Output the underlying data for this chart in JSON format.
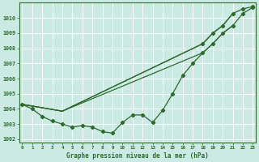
{
  "background_color": "#cceae4",
  "grid_color": "#ffffff",
  "line_color": "#2d6a2d",
  "title": "Graphe pression niveau de la mer (hPa)",
  "yticks": [
    1002,
    1003,
    1004,
    1005,
    1006,
    1007,
    1008,
    1009,
    1010
  ],
  "ylim_low": 1001.8,
  "ylim_high": 1011.0,
  "xlim_low": -0.3,
  "xlim_high": 23.3,
  "curve1_x": [
    0,
    1,
    2,
    3,
    4,
    5,
    6,
    7,
    8,
    9,
    10,
    11,
    12,
    13,
    14,
    15,
    16,
    17,
    18,
    19,
    20,
    21,
    22,
    23
  ],
  "curve1_y": [
    1004.3,
    1004.0,
    1003.5,
    1003.2,
    1003.0,
    1002.8,
    1002.9,
    1002.8,
    1002.5,
    1002.4,
    1003.1,
    1003.6,
    1003.6,
    1003.1,
    1003.9,
    1005.0,
    1006.2,
    1007.0,
    1007.7,
    1008.3,
    1009.0,
    1009.5,
    1010.3,
    1010.7
  ],
  "curve2_x": [
    0,
    4,
    18,
    19,
    20,
    21,
    22,
    23
  ],
  "curve2_y": [
    1004.3,
    1003.85,
    1008.3,
    1009.0,
    1009.5,
    1010.3,
    1010.6,
    1010.75
  ],
  "curve3_x": [
    0,
    4,
    18,
    19,
    20,
    21
  ],
  "curve3_y": [
    1004.3,
    1003.85,
    1007.7,
    1008.3,
    1009.0,
    1009.5
  ],
  "curve4_x": [
    0,
    4,
    18,
    19,
    20,
    21
  ],
  "curve4_y": [
    1004.3,
    1003.85,
    1008.3,
    1009.0,
    1009.5,
    1010.3
  ],
  "markers1_x": [
    0,
    1,
    2,
    3,
    4,
    5,
    6,
    7,
    8,
    9,
    10,
    11,
    12,
    13,
    14,
    15,
    16,
    17,
    18,
    19,
    20,
    21,
    22,
    23
  ],
  "markers1_y": [
    1004.3,
    1004.0,
    1003.5,
    1003.2,
    1003.0,
    1002.8,
    1002.9,
    1002.8,
    1002.5,
    1002.4,
    1003.1,
    1003.6,
    1003.6,
    1003.1,
    1003.9,
    1005.0,
    1006.2,
    1007.0,
    1007.7,
    1008.3,
    1009.0,
    1009.5,
    1010.3,
    1010.7
  ],
  "markers2_x": [
    18,
    19,
    20,
    21,
    22,
    23
  ],
  "markers2_y": [
    1008.3,
    1009.0,
    1009.5,
    1010.3,
    1010.6,
    1010.75
  ]
}
